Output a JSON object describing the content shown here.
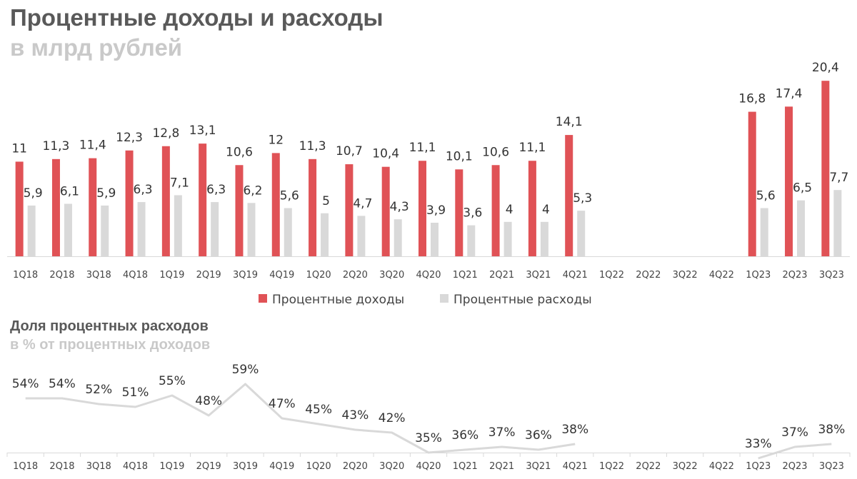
{
  "header": {
    "title": "Процентные доходы и расходы",
    "subtitle": "в млрд рублей"
  },
  "section2": {
    "title": "Доля процентных расходов",
    "subtitle": "в % от процентных доходов"
  },
  "colors": {
    "income": "#e05256",
    "expense": "#d9d9d9",
    "share_line": "#d9d9d9",
    "axis": "#d9d9d9"
  },
  "chart_data": [
    {
      "type": "bar",
      "title": "Процентные доходы и расходы",
      "subtitle": "в млрд рублей",
      "categories": [
        "1Q18",
        "2Q18",
        "3Q18",
        "4Q18",
        "1Q19",
        "2Q19",
        "3Q19",
        "4Q19",
        "1Q20",
        "2Q20",
        "3Q20",
        "4Q20",
        "1Q21",
        "2Q21",
        "3Q21",
        "4Q21",
        "1Q22",
        "2Q22",
        "3Q22",
        "4Q22",
        "1Q23",
        "2Q23",
        "3Q23"
      ],
      "series": [
        {
          "name": "Процентные доходы",
          "values": [
            11,
            11.3,
            11.4,
            12.3,
            12.8,
            13.1,
            10.6,
            12,
            11.3,
            10.7,
            10.4,
            11.1,
            10.1,
            10.6,
            11.1,
            14.1,
            null,
            null,
            null,
            null,
            16.8,
            17.4,
            20.4
          ],
          "labels": [
            "11",
            "11,3",
            "11,4",
            "12,3",
            "12,8",
            "13,1",
            "10,6",
            "12",
            "11,3",
            "10,7",
            "10,4",
            "11,1",
            "10,1",
            "10,6",
            "11,1",
            "14,1",
            "",
            "",
            "",
            "",
            "16,8",
            "17,4",
            "20,4"
          ]
        },
        {
          "name": "Процентные расходы",
          "values": [
            5.9,
            6.1,
            5.9,
            6.3,
            7.1,
            6.3,
            6.2,
            5.6,
            5,
            4.7,
            4.3,
            3.9,
            3.6,
            4,
            4,
            5.3,
            null,
            null,
            null,
            null,
            5.6,
            6.5,
            7.7
          ],
          "labels": [
            "5,9",
            "6,1",
            "5,9",
            "6,3",
            "7,1",
            "6,3",
            "6,2",
            "5,6",
            "5",
            "4,7",
            "4,3",
            "3,9",
            "3,6",
            "4",
            "4",
            "5,3",
            "",
            "",
            "",
            "",
            "5,6",
            "6,5",
            "7,7"
          ]
        }
      ],
      "ylim": [
        0,
        21
      ],
      "grid": false,
      "legend": "bottom-center"
    },
    {
      "type": "line",
      "title": "Доля процентных расходов",
      "subtitle": "в % от процентных доходов",
      "categories": [
        "1Q18",
        "2Q18",
        "3Q18",
        "4Q18",
        "1Q19",
        "2Q19",
        "3Q19",
        "4Q19",
        "1Q20",
        "2Q20",
        "3Q20",
        "4Q20",
        "1Q21",
        "2Q21",
        "3Q21",
        "4Q21",
        "1Q22",
        "2Q22",
        "3Q22",
        "4Q22",
        "1Q23",
        "2Q23",
        "3Q23"
      ],
      "series": [
        {
          "values": [
            54,
            54,
            52,
            51,
            55,
            48,
            59,
            47,
            45,
            43,
            42,
            35,
            36,
            37,
            36,
            38,
            null,
            null,
            null,
            null,
            33,
            37,
            38
          ],
          "labels": [
            "54%",
            "54%",
            "52%",
            "51%",
            "55%",
            "48%",
            "59%",
            "47%",
            "45%",
            "43%",
            "42%",
            "35%",
            "36%",
            "37%",
            "36%",
            "38%",
            "",
            "",
            "",
            "",
            "33%",
            "37%",
            "38%"
          ]
        }
      ],
      "grid": false
    }
  ]
}
